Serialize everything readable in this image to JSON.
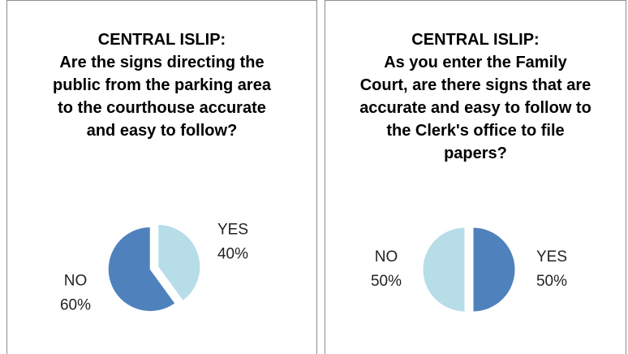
{
  "chart_data": [
    {
      "type": "pie",
      "title": "CENTRAL ISLIP:",
      "subtitle": "Are the signs directing the public from the parking area to the courthouse accurate and easy to follow?",
      "categories": [
        "YES",
        "NO"
      ],
      "values": [
        40,
        60
      ],
      "value_labels": [
        "40%",
        "60%"
      ],
      "colors": [
        "#b7dde8",
        "#4f81bd"
      ]
    },
    {
      "type": "pie",
      "title": "CENTRAL ISLIP:",
      "subtitle": "As you enter the Family Court, are there signs that are accurate and easy to follow to the Clerk's office to file papers?",
      "categories": [
        "YES",
        "NO"
      ],
      "values": [
        50,
        50
      ],
      "value_labels": [
        "50%",
        "50%"
      ],
      "colors": [
        "#4f81bd",
        "#b7dde8"
      ]
    }
  ]
}
